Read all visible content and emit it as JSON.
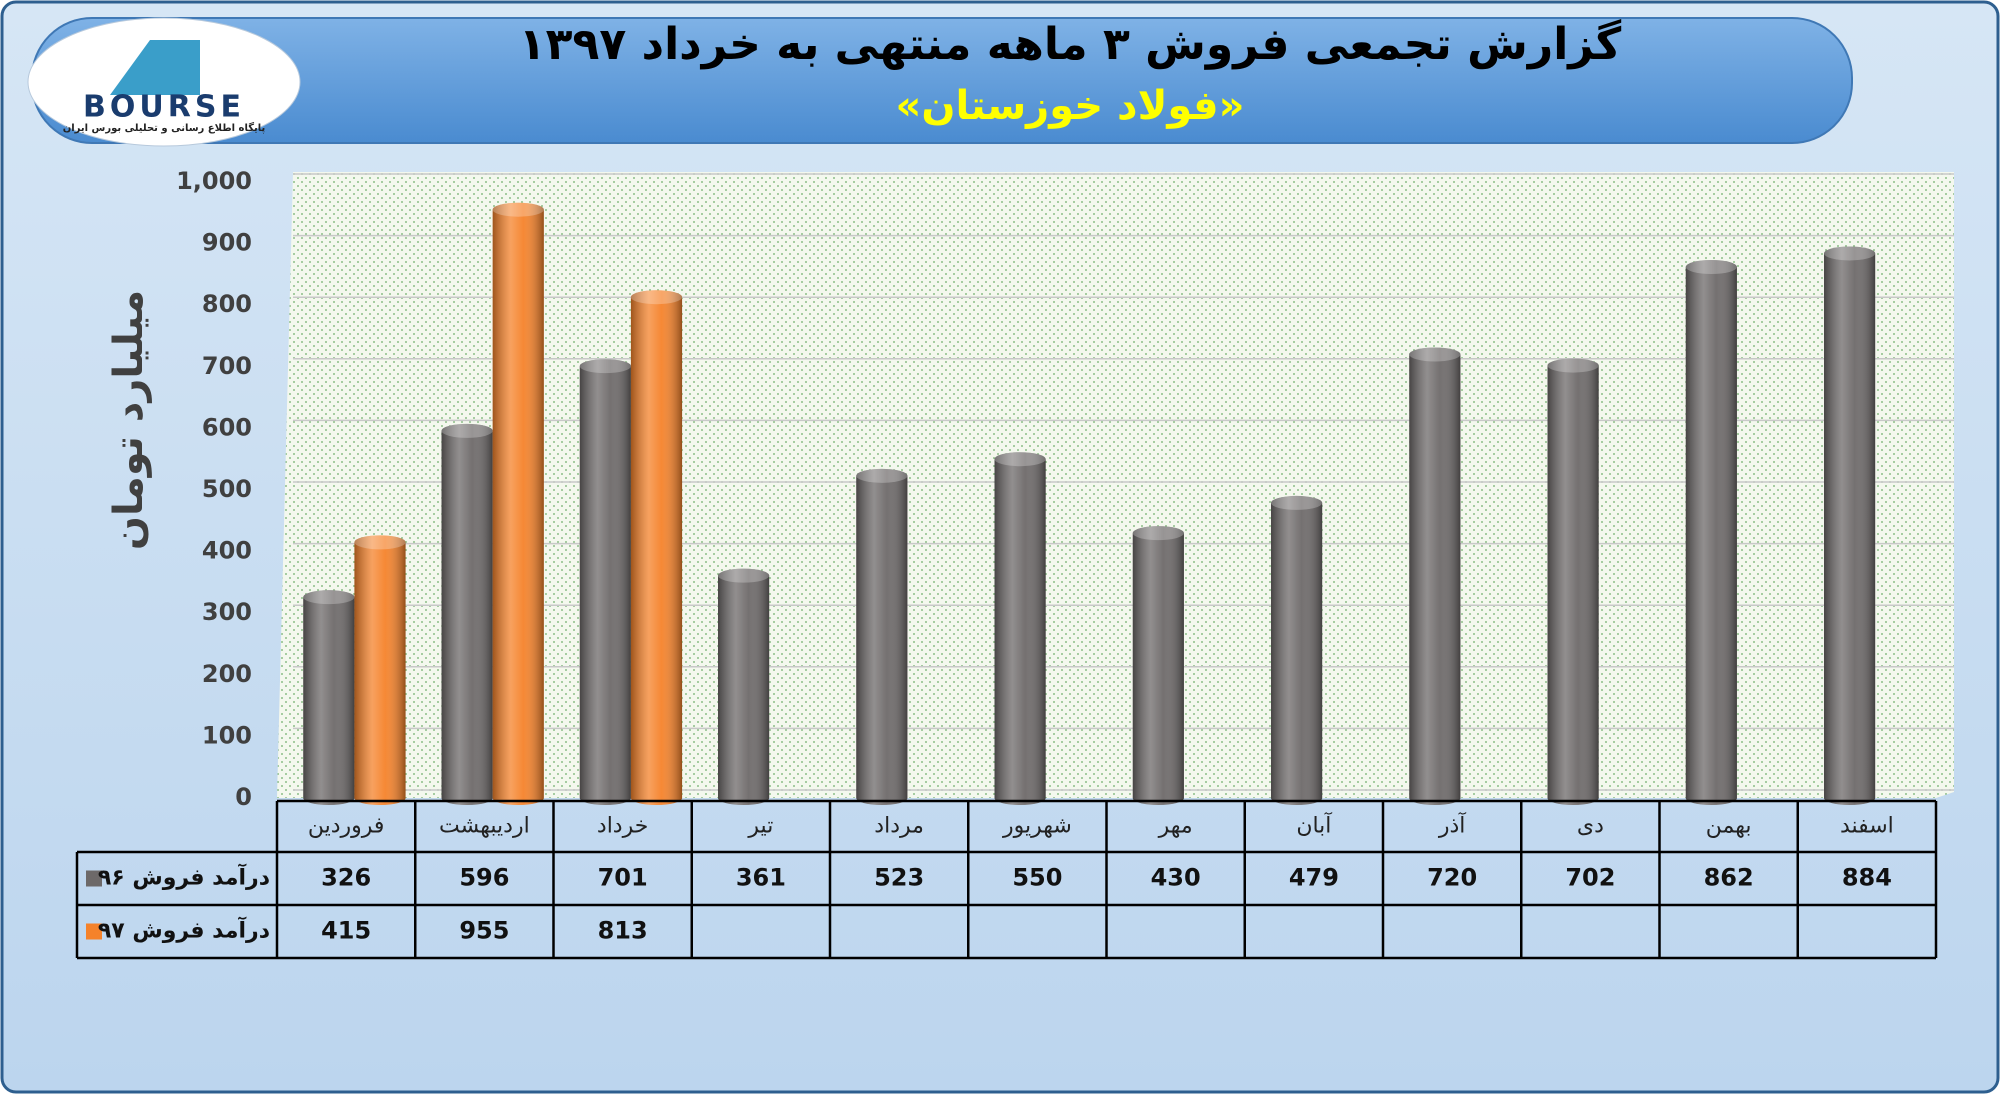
{
  "logo": {
    "text": "BOURSE",
    "tagline": "پایگاه اطلاع رسانی و تحلیلی بورس ایران"
  },
  "chart_data": {
    "type": "bar",
    "title": "گزارش تجمعی فروش ۳ ماهه منتهی به خرداد ۱۳۹۷",
    "subtitle": "«فولاد خوزستان»",
    "y_label": "میلیارد تومان",
    "categories": [
      "فروردین",
      "اردیبهشت",
      "خرداد",
      "تیر",
      "مرداد",
      "شهریور",
      "مهر",
      "آبان",
      "آذر",
      "دی",
      "بهمن",
      "اسفند"
    ],
    "series": [
      {
        "name": "درآمد فروش ۹۶",
        "color": "#6d6969",
        "values": [
          326,
          596,
          701,
          361,
          523,
          550,
          430,
          479,
          720,
          702,
          862,
          884
        ]
      },
      {
        "name": "درآمد فروش ۹۷",
        "color": "#f5822a",
        "values": [
          415,
          955,
          813,
          null,
          null,
          null,
          null,
          null,
          null,
          null,
          null,
          null
        ]
      }
    ],
    "ylim": [
      0,
      1000
    ],
    "yticks": [
      0,
      100,
      200,
      300,
      400,
      500,
      600,
      700,
      800,
      900,
      {
        "value": 1000,
        "label": "1,000"
      }
    ],
    "grid": true
  }
}
